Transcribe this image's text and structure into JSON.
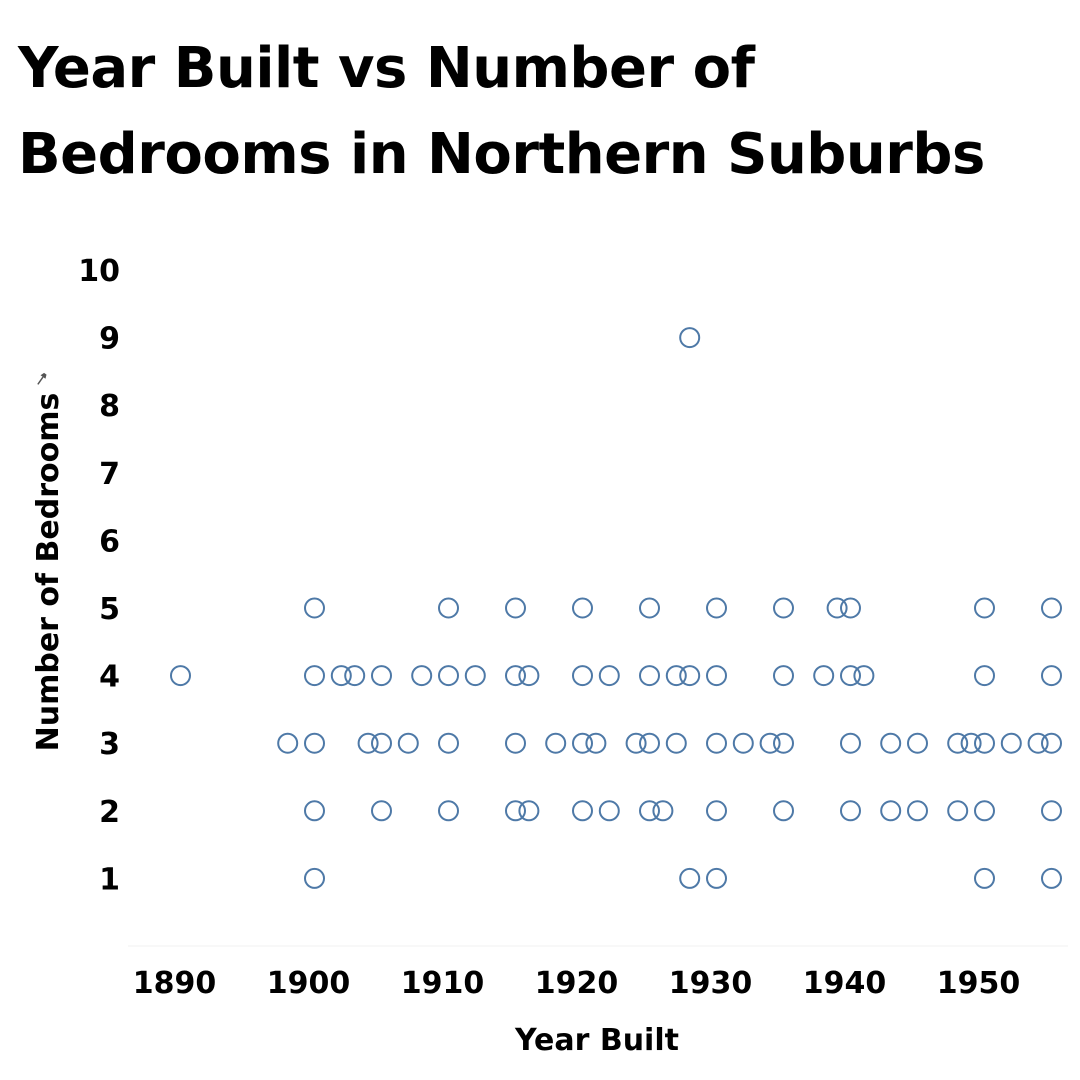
{
  "chart_data": {
    "type": "scatter",
    "title": "Year Built vs Number of Bedrooms in Northern Suburbs",
    "xlabel": "Year Built",
    "ylabel": "Number of Bedrooms",
    "xlim": [
      1884,
      1959
    ],
    "ylim": [
      0,
      10
    ],
    "x_ticks": [
      1890,
      1900,
      1910,
      1920,
      1930,
      1940,
      1950
    ],
    "y_ticks": [
      1,
      2,
      3,
      4,
      5,
      6,
      7,
      8,
      9,
      10
    ],
    "grid": false,
    "marker": "hollow-circle",
    "color": "#4e79a7",
    "points": [
      {
        "x": 1890,
        "y": 4
      },
      {
        "x": 1898,
        "y": 3
      },
      {
        "x": 1900,
        "y": 5
      },
      {
        "x": 1900,
        "y": 4
      },
      {
        "x": 1900,
        "y": 3
      },
      {
        "x": 1900,
        "y": 2
      },
      {
        "x": 1900,
        "y": 1
      },
      {
        "x": 1902,
        "y": 4
      },
      {
        "x": 1903,
        "y": 4
      },
      {
        "x": 1904,
        "y": 3
      },
      {
        "x": 1905,
        "y": 4
      },
      {
        "x": 1905,
        "y": 3
      },
      {
        "x": 1905,
        "y": 2
      },
      {
        "x": 1907,
        "y": 3
      },
      {
        "x": 1908,
        "y": 4
      },
      {
        "x": 1910,
        "y": 5
      },
      {
        "x": 1910,
        "y": 4
      },
      {
        "x": 1910,
        "y": 3
      },
      {
        "x": 1910,
        "y": 2
      },
      {
        "x": 1912,
        "y": 4
      },
      {
        "x": 1915,
        "y": 5
      },
      {
        "x": 1915,
        "y": 4
      },
      {
        "x": 1915,
        "y": 3
      },
      {
        "x": 1915,
        "y": 2
      },
      {
        "x": 1916,
        "y": 4
      },
      {
        "x": 1916,
        "y": 2
      },
      {
        "x": 1918,
        "y": 3
      },
      {
        "x": 1920,
        "y": 5
      },
      {
        "x": 1920,
        "y": 4
      },
      {
        "x": 1920,
        "y": 3
      },
      {
        "x": 1920,
        "y": 2
      },
      {
        "x": 1921,
        "y": 3
      },
      {
        "x": 1922,
        "y": 4
      },
      {
        "x": 1922,
        "y": 2
      },
      {
        "x": 1924,
        "y": 3
      },
      {
        "x": 1925,
        "y": 5
      },
      {
        "x": 1925,
        "y": 4
      },
      {
        "x": 1925,
        "y": 3
      },
      {
        "x": 1925,
        "y": 2
      },
      {
        "x": 1926,
        "y": 2
      },
      {
        "x": 1927,
        "y": 4
      },
      {
        "x": 1927,
        "y": 3
      },
      {
        "x": 1928,
        "y": 9
      },
      {
        "x": 1928,
        "y": 4
      },
      {
        "x": 1928,
        "y": 1
      },
      {
        "x": 1930,
        "y": 5
      },
      {
        "x": 1930,
        "y": 4
      },
      {
        "x": 1930,
        "y": 3
      },
      {
        "x": 1930,
        "y": 2
      },
      {
        "x": 1930,
        "y": 1
      },
      {
        "x": 1932,
        "y": 3
      },
      {
        "x": 1934,
        "y": 3
      },
      {
        "x": 1935,
        "y": 5
      },
      {
        "x": 1935,
        "y": 4
      },
      {
        "x": 1935,
        "y": 3
      },
      {
        "x": 1935,
        "y": 2
      },
      {
        "x": 1938,
        "y": 4
      },
      {
        "x": 1939,
        "y": 5
      },
      {
        "x": 1940,
        "y": 5
      },
      {
        "x": 1940,
        "y": 4
      },
      {
        "x": 1940,
        "y": 3
      },
      {
        "x": 1940,
        "y": 2
      },
      {
        "x": 1941,
        "y": 4
      },
      {
        "x": 1943,
        "y": 3
      },
      {
        "x": 1943,
        "y": 2
      },
      {
        "x": 1945,
        "y": 3
      },
      {
        "x": 1945,
        "y": 2
      },
      {
        "x": 1948,
        "y": 3
      },
      {
        "x": 1948,
        "y": 2
      },
      {
        "x": 1949,
        "y": 3
      },
      {
        "x": 1950,
        "y": 5
      },
      {
        "x": 1950,
        "y": 4
      },
      {
        "x": 1950,
        "y": 3
      },
      {
        "x": 1950,
        "y": 2
      },
      {
        "x": 1950,
        "y": 1
      },
      {
        "x": 1952,
        "y": 3
      },
      {
        "x": 1954,
        "y": 3
      },
      {
        "x": 1955,
        "y": 5
      },
      {
        "x": 1955,
        "y": 4
      },
      {
        "x": 1955,
        "y": 3
      },
      {
        "x": 1955,
        "y": 2
      },
      {
        "x": 1955,
        "y": 1
      }
    ]
  }
}
